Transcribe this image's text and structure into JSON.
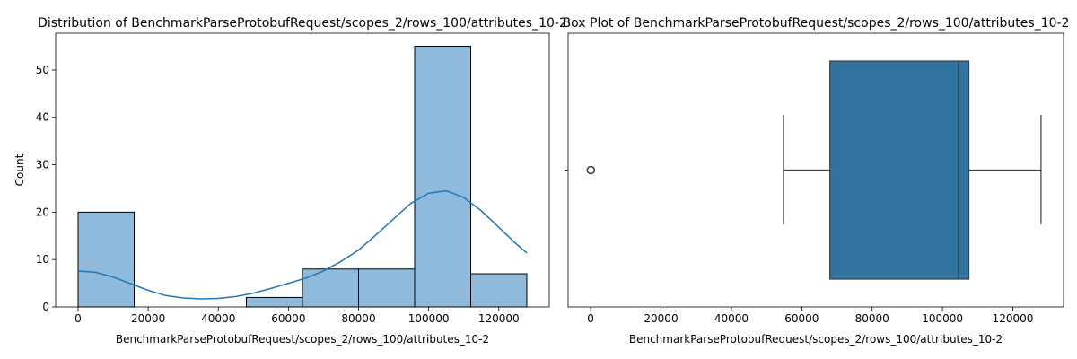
{
  "chart_data": [
    {
      "type": "bar",
      "subtype": "histogram",
      "title": "Distribution of BenchmarkParseProtobufRequest/scopes_2/rows_100/attributes_10-2",
      "xlabel": "BenchmarkParseProtobufRequest/scopes_2/rows_100/attributes_10-2",
      "ylabel": "Count",
      "xlim": [
        -6400,
        134400
      ],
      "ylim": [
        0,
        57.75
      ],
      "xticks": [
        "0",
        "20000",
        "40000",
        "60000",
        "80000",
        "100000",
        "120000"
      ],
      "yticks": [
        "0",
        "10",
        "20",
        "30",
        "40",
        "50"
      ],
      "bins": [
        {
          "x0": 0,
          "x1": 16000,
          "count": 20
        },
        {
          "x0": 16000,
          "x1": 32000,
          "count": 0
        },
        {
          "x0": 32000,
          "x1": 48000,
          "count": 0
        },
        {
          "x0": 48000,
          "x1": 64000,
          "count": 2
        },
        {
          "x0": 64000,
          "x1": 80000,
          "count": 8
        },
        {
          "x0": 80000,
          "x1": 96000,
          "count": 8
        },
        {
          "x0": 96000,
          "x1": 112000,
          "count": 55
        },
        {
          "x0": 112000,
          "x1": 128000,
          "count": 7
        }
      ],
      "kde": {
        "x": [
          0,
          5000,
          10000,
          15000,
          20000,
          25000,
          30000,
          35000,
          40000,
          45000,
          50000,
          55000,
          60000,
          65000,
          70000,
          75000,
          80000,
          85000,
          90000,
          95000,
          100000,
          105000,
          110000,
          115000,
          120000,
          125000,
          128000
        ],
        "y": [
          7.6,
          7.3,
          6.3,
          4.9,
          3.5,
          2.4,
          1.9,
          1.7,
          1.8,
          2.2,
          2.9,
          3.9,
          5.0,
          6.1,
          7.6,
          9.6,
          12.0,
          15.2,
          18.6,
          21.9,
          24.0,
          24.5,
          23.1,
          20.3,
          16.8,
          13.3,
          11.4
        ]
      },
      "colors": {
        "bar_fill": "#8fbadb",
        "bar_edge": "#000000",
        "kde_line": "#1f77b4"
      }
    },
    {
      "type": "box",
      "title": "Box Plot of BenchmarkParseProtobufRequest/scopes_2/rows_100/attributes_10-2",
      "xlabel": "BenchmarkParseProtobufRequest/scopes_2/rows_100/attributes_10-2",
      "xlim": [
        -6400,
        134400
      ],
      "xticks": [
        "0",
        "20000",
        "40000",
        "60000",
        "80000",
        "100000",
        "120000"
      ],
      "whisker_low": 54800,
      "q1": 68000,
      "median": 104500,
      "q3": 107500,
      "whisker_high": 128000,
      "outliers": [
        0,
        50,
        100
      ],
      "colors": {
        "box_fill": "#3274a1",
        "line": "#3d3d3d"
      }
    }
  ]
}
